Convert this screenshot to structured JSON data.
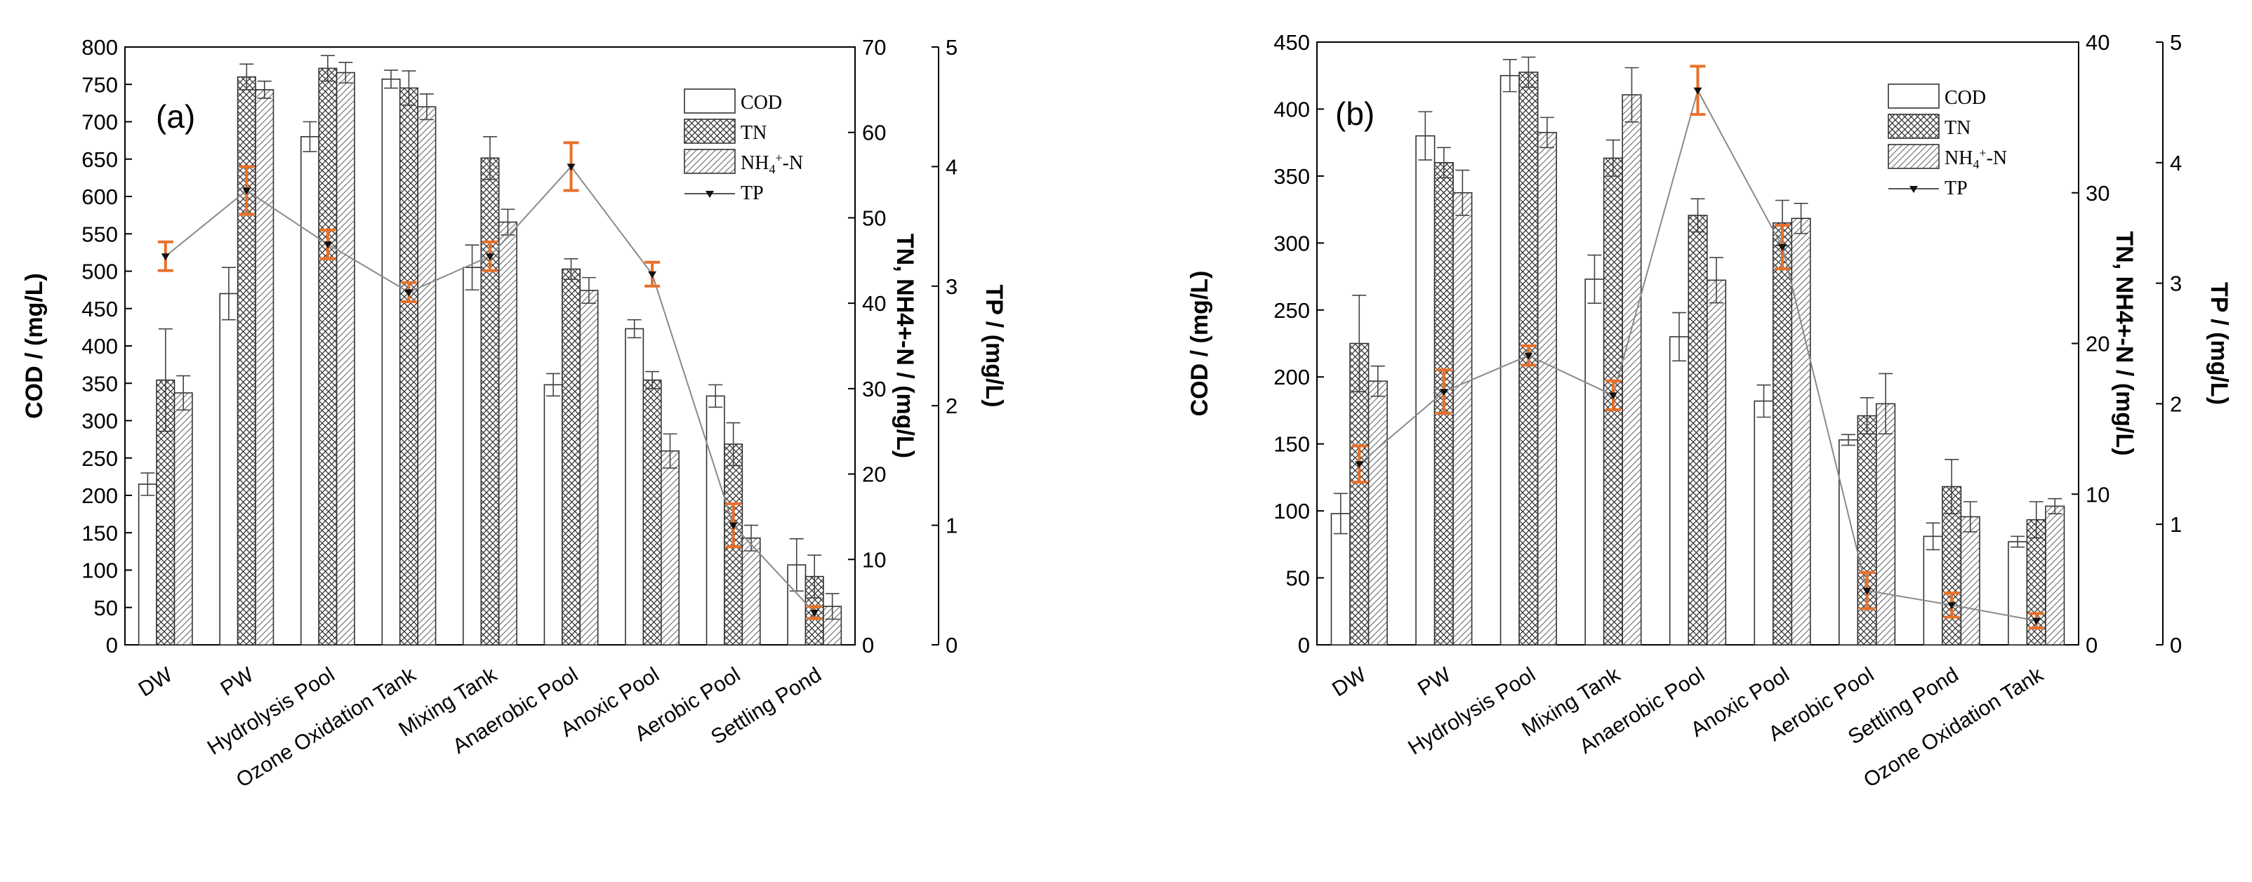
{
  "chart_data": [
    {
      "panel_label": "(a)",
      "type": "bar",
      "categories": [
        "DW",
        "PW",
        "Hydrolysis  Pool",
        "Ozone Oxidation Tank",
        "Mixing Tank",
        "Anaerobic Pool",
        "Anoxic Pool",
        "Aerobic Pool",
        "Settling Pond"
      ],
      "series": [
        {
          "name": "COD",
          "axis": "left",
          "values": [
            215,
            470,
            680,
            757,
            505,
            348,
            423,
            333,
            107
          ],
          "errors": [
            15,
            35,
            20,
            12,
            30,
            15,
            12,
            15,
            35
          ]
        },
        {
          "name": "TN",
          "axis": "right1",
          "values": [
            31,
            66.5,
            67.5,
            65.2,
            57,
            44,
            31,
            23.5,
            8
          ],
          "errors": [
            6,
            1.5,
            1.5,
            2,
            2.5,
            1.2,
            1,
            2.5,
            2.5
          ]
        },
        {
          "name": "NH4+-N",
          "axis": "right1",
          "values": [
            29.5,
            65,
            67,
            63,
            49.5,
            41.5,
            22.7,
            12.5,
            4.5
          ],
          "errors": [
            2,
            1,
            1.2,
            1.5,
            1.5,
            1.5,
            2,
            1.5,
            1.5
          ]
        }
      ],
      "line_series": {
        "name": "TP",
        "axis": "right2",
        "values": [
          3.25,
          3.8,
          3.35,
          2.95,
          3.25,
          4.0,
          3.1,
          1.0,
          0.27
        ],
        "errors": [
          0.12,
          0.2,
          0.12,
          0.08,
          0.12,
          0.2,
          0.1,
          0.18,
          0.05
        ]
      },
      "legend": [
        "COD",
        "TN",
        "NH4+-N",
        "TP"
      ],
      "legend_position": "top-right",
      "ylabel_left": "COD  / (mg/L)",
      "ylabel_right1": "TN, NH4+-N / (mg/L)",
      "ylabel_right2": "TP / (mg/L)",
      "ylim_left": [
        0,
        800
      ],
      "ylim_right1": [
        0,
        70
      ],
      "ylim_right2": [
        0,
        5
      ],
      "yticks_left": [
        "0",
        "50",
        "100",
        "150",
        "200",
        "250",
        "300",
        "350",
        "400",
        "450",
        "500",
        "550",
        "600",
        "650",
        "700",
        "750",
        "800"
      ],
      "yticks_right1": [
        "0",
        "10",
        "20",
        "30",
        "40",
        "50",
        "60",
        "70"
      ],
      "yticks_right2": [
        "0",
        "1",
        "2",
        "3",
        "4",
        "5"
      ]
    },
    {
      "panel_label": "(b)",
      "type": "bar",
      "categories": [
        "DW",
        "PW",
        "Hydrolysis  Pool",
        "Mixing Tank",
        "Anaerobic Pool",
        "Anoxic Pool",
        "Aerobic Pool",
        "Settling Pond",
        "Ozone Oxidation Tank"
      ],
      "series": [
        {
          "name": "COD",
          "axis": "left",
          "values": [
            98,
            380,
            425,
            273,
            230,
            182,
            153,
            81,
            77
          ],
          "errors": [
            15,
            18,
            12,
            18,
            18,
            12,
            4,
            10,
            4
          ]
        },
        {
          "name": "TN",
          "axis": "right1",
          "values": [
            20,
            32,
            38,
            32.3,
            28.5,
            28,
            15.2,
            10.5,
            8.3
          ],
          "errors": [
            3.2,
            1,
            1,
            1.2,
            1.1,
            1.5,
            1.2,
            1.8,
            1.2
          ]
        },
        {
          "name": "NH4+-N",
          "axis": "right1",
          "values": [
            17.5,
            30,
            34,
            36.5,
            24.2,
            28.3,
            16,
            8.5,
            9.2
          ],
          "errors": [
            1,
            1.5,
            1,
            1.8,
            1.5,
            1,
            2,
            1,
            0.5
          ]
        }
      ],
      "line_series": {
        "name": "TP",
        "axis": "right2",
        "values": [
          1.5,
          2.1,
          2.4,
          2.07,
          4.6,
          3.3,
          0.45,
          0.33,
          0.2
        ],
        "errors": [
          0.15,
          0.18,
          0.08,
          0.12,
          0.2,
          0.18,
          0.15,
          0.1,
          0.06
        ]
      },
      "legend": [
        "COD",
        "TN",
        "NH4+-N",
        "TP"
      ],
      "legend_position": "top-right",
      "ylabel_left": "COD  / (mg/L)",
      "ylabel_right1": "TN, NH4+-N / (mg/L)",
      "ylabel_right2": "TP / (mg/L)",
      "ylim_left": [
        0,
        450
      ],
      "ylim_right1": [
        0,
        40
      ],
      "ylim_right2": [
        0,
        5
      ],
      "yticks_left": [
        "0",
        "50",
        "100",
        "150",
        "200",
        "250",
        "300",
        "350",
        "400",
        "450"
      ],
      "yticks_right1": [
        "0",
        "10",
        "20",
        "30",
        "40"
      ],
      "yticks_right2": [
        "0",
        "1",
        "2",
        "3",
        "4",
        "5"
      ]
    }
  ],
  "colors": {
    "tp_error": "#e8702a",
    "axis": "#000000",
    "line": "#8a8a8a",
    "bar_fill": "#ffffff"
  }
}
